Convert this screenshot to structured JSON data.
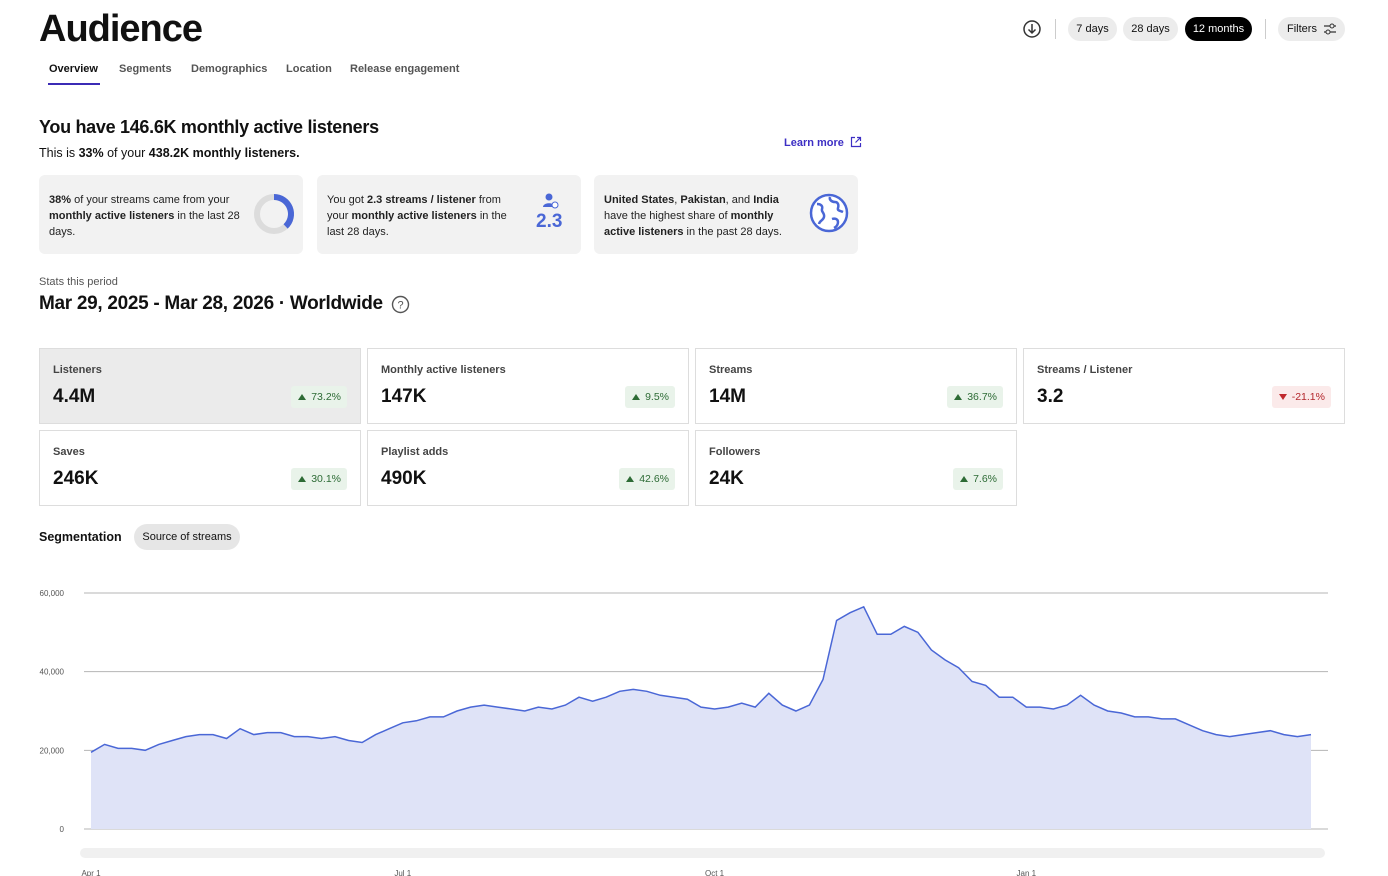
{
  "header": {
    "title": "Audience",
    "tabs": [
      "Overview",
      "Segments",
      "Demographics",
      "Location",
      "Release engagement"
    ],
    "ranges": [
      "7 days",
      "28 days",
      "12 months"
    ],
    "filters": "Filters"
  },
  "summary": {
    "headline": "You have 146.6K monthly active listeners",
    "subline": [
      "This is ",
      "33%",
      " of your ",
      "438.2K monthly listeners."
    ],
    "learn_more": "Learn more"
  },
  "insights": [
    {
      "text": [
        "38%",
        " of your streams came from your ",
        "monthly active listeners",
        " in the last 28 days."
      ],
      "percent": 38
    },
    {
      "text": [
        "You got ",
        "2.3 streams / listener",
        " from your ",
        "monthly active listeners",
        " in the last 28 days."
      ],
      "figure": 2.3
    },
    {
      "text": [
        "United States",
        ", ",
        "Pakistan",
        ", and ",
        "India",
        " have the highest share of ",
        "monthly active listeners",
        " in the past 28 days."
      ]
    }
  ],
  "stats": {
    "label": "Stats this period",
    "period": "Mar 29, 2025 - Mar 28, 2026 · Worldwide",
    "metrics": [
      {
        "name": "Listeners",
        "value": "4.4M",
        "change": "73.2%"
      },
      {
        "name": "Monthly active listeners",
        "value": "147K",
        "change": "9.5%"
      },
      {
        "name": "Streams",
        "value": "14M",
        "change": "36.7%"
      },
      {
        "name": "Streams / Listener",
        "value": "3.2",
        "change": "-21.1%"
      },
      {
        "name": "Saves",
        "value": "246K",
        "change": "30.1%"
      },
      {
        "name": "Playlist adds",
        "value": "490K",
        "change": "42.6%"
      },
      {
        "name": "Followers",
        "value": "24K",
        "change": "7.6%"
      }
    ]
  },
  "segmentation": {
    "label": "Segmentation",
    "chip": "Source of streams"
  },
  "chart_data": {
    "type": "area",
    "color": "#4a67d6",
    "fill": "#dfe3f7",
    "grid": true,
    "categories": [
      "Apr 1",
      null,
      null,
      null,
      null,
      null,
      null,
      null,
      null,
      null,
      null,
      null,
      null,
      null,
      null,
      null,
      null,
      null,
      null,
      null,
      null,
      null,
      null,
      "Jul 1",
      null,
      null,
      null,
      null,
      null,
      null,
      null,
      null,
      null,
      null,
      null,
      null,
      null,
      null,
      null,
      null,
      null,
      null,
      null,
      null,
      null,
      null,
      "Oct 1",
      null,
      null,
      null,
      null,
      null,
      null,
      null,
      null,
      null,
      null,
      null,
      null,
      null,
      null,
      null,
      null,
      null,
      null,
      null,
      null,
      null,
      null,
      "Jan 1",
      null,
      null,
      null,
      null,
      null,
      null,
      null,
      null,
      null,
      null,
      null,
      null,
      null,
      null,
      null,
      null,
      null,
      null,
      null,
      null,
      null
    ],
    "values": [
      19500,
      21500,
      20500,
      20500,
      20000,
      21500,
      22500,
      23500,
      24000,
      24000,
      23000,
      25500,
      24000,
      24500,
      24500,
      23500,
      23500,
      23000,
      23500,
      22500,
      22000,
      24000,
      25500,
      27000,
      27500,
      28500,
      28500,
      30000,
      31000,
      31500,
      31000,
      30500,
      30000,
      31000,
      30500,
      31500,
      33500,
      32500,
      33500,
      35000,
      35500,
      35000,
      34000,
      33500,
      33000,
      31000,
      30500,
      31000,
      32000,
      31000,
      34500,
      31500,
      30000,
      31500,
      38000,
      53000,
      55000,
      56500,
      49500,
      49500,
      51500,
      50000,
      45500,
      43000,
      41000,
      37500,
      36500,
      33500,
      33500,
      31000,
      31000,
      30500,
      31500,
      34000,
      31500,
      30000,
      29500,
      28500,
      28500,
      28000,
      28000,
      26500,
      25000,
      24000,
      23500,
      24000,
      24500,
      25000,
      24000,
      23500,
      24000
    ],
    "ylim": [
      0,
      60000
    ],
    "yticks": [
      0,
      {
        "value": 20000,
        "label": "20,000"
      },
      {
        "value": 40000,
        "label": "40,000"
      },
      {
        "value": 60000,
        "label": "60,000"
      }
    ]
  }
}
